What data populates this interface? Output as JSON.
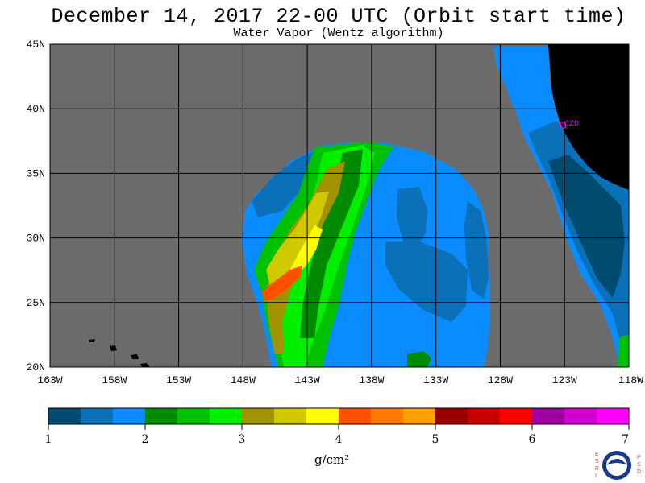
{
  "header": {
    "title": "December 14, 2017  22-00 UTC  (Orbit start time)",
    "subtitle": "Water Vapor (Wentz algorithm)"
  },
  "map": {
    "lat_range": [
      20,
      45
    ],
    "lon_range": [
      -163,
      -118
    ],
    "lat_ticks": [
      {
        "value": 45,
        "label": "45N"
      },
      {
        "value": 40,
        "label": "40N"
      },
      {
        "value": 35,
        "label": "35N"
      },
      {
        "value": 30,
        "label": "30N"
      },
      {
        "value": 25,
        "label": "25N"
      },
      {
        "value": 20,
        "label": "20N"
      }
    ],
    "lon_ticks": [
      {
        "value": -163,
        "label": "163W"
      },
      {
        "value": -158,
        "label": "158W"
      },
      {
        "value": -153,
        "label": "153W"
      },
      {
        "value": -148,
        "label": "148W"
      },
      {
        "value": -143,
        "label": "143W"
      },
      {
        "value": -138,
        "label": "138W"
      },
      {
        "value": -133,
        "label": "133W"
      },
      {
        "value": -128,
        "label": "128W"
      },
      {
        "value": -123,
        "label": "123W"
      },
      {
        "value": -118,
        "label": "118W"
      }
    ],
    "station_label": "CZD",
    "colors": {
      "no_data": "#6b6b6b",
      "land": "#000000",
      "grid": "#000000",
      "station": "#ff00ff"
    }
  },
  "colorbar": {
    "colors": [
      "#004c70",
      "#0a70b8",
      "#0a8cff",
      "#008a00",
      "#00c000",
      "#00f000",
      "#a09200",
      "#d0c800",
      "#ffff00",
      "#ff5000",
      "#ff7a00",
      "#ffa000",
      "#9a0000",
      "#c80000",
      "#ff0000",
      "#a000a0",
      "#d000d0",
      "#ff00ff"
    ],
    "tick_labels": [
      "1",
      "2",
      "3",
      "4",
      "5",
      "6",
      "7"
    ],
    "unit": "g/cm²"
  },
  "logo": {
    "left_letters": "ESRL",
    "right_letters": "PSD",
    "text": "NOAA"
  }
}
